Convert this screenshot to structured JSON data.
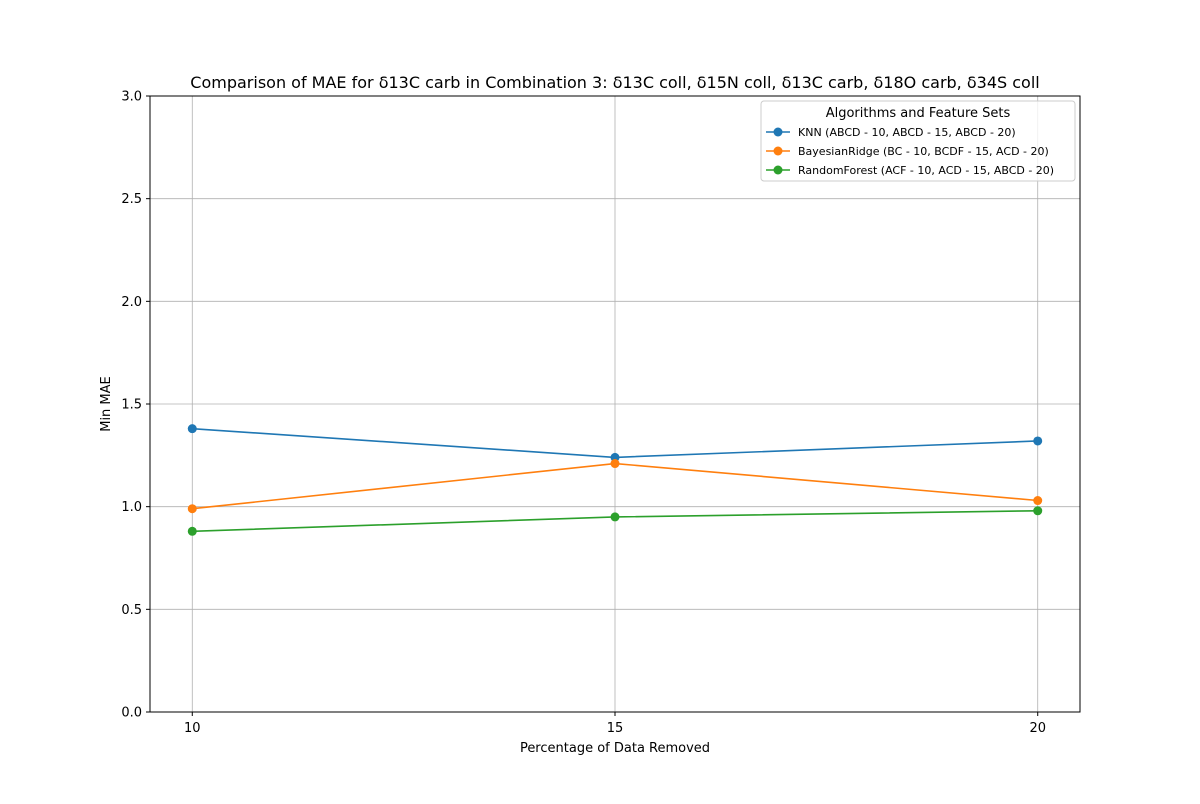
{
  "chart_data": {
    "type": "line",
    "title": "Comparison of MAE for δ13C carb in Combination 3: δ13C coll, δ15N coll, δ13C carb, δ18O carb, δ34S coll",
    "xlabel": "Percentage of Data Removed",
    "ylabel": "Min MAE",
    "x": [
      10,
      15,
      20
    ],
    "x_tick_labels": [
      "10",
      "15",
      "20"
    ],
    "ylim": [
      0.0,
      3.0
    ],
    "y_ticks": [
      0.0,
      0.5,
      1.0,
      1.5,
      2.0,
      2.5,
      3.0
    ],
    "y_tick_labels": [
      "0.0",
      "0.5",
      "1.0",
      "1.5",
      "2.0",
      "2.5",
      "3.0"
    ],
    "grid": true,
    "legend": {
      "title": "Algorithms and Feature Sets",
      "placement": "top-right"
    },
    "series": [
      {
        "name": "KNN (ABCD - 10, ABCD - 15, ABCD - 20)",
        "color": "#1f77b4",
        "values": [
          1.38,
          1.24,
          1.32
        ]
      },
      {
        "name": "BayesianRidge (BC - 10, BCDF - 15, ACD - 20)",
        "color": "#ff7f0e",
        "values": [
          0.99,
          1.21,
          1.03
        ]
      },
      {
        "name": "RandomForest (ACF - 10, ACD - 15, ABCD - 20)",
        "color": "#2ca02c",
        "values": [
          0.88,
          0.95,
          0.98
        ]
      }
    ]
  }
}
